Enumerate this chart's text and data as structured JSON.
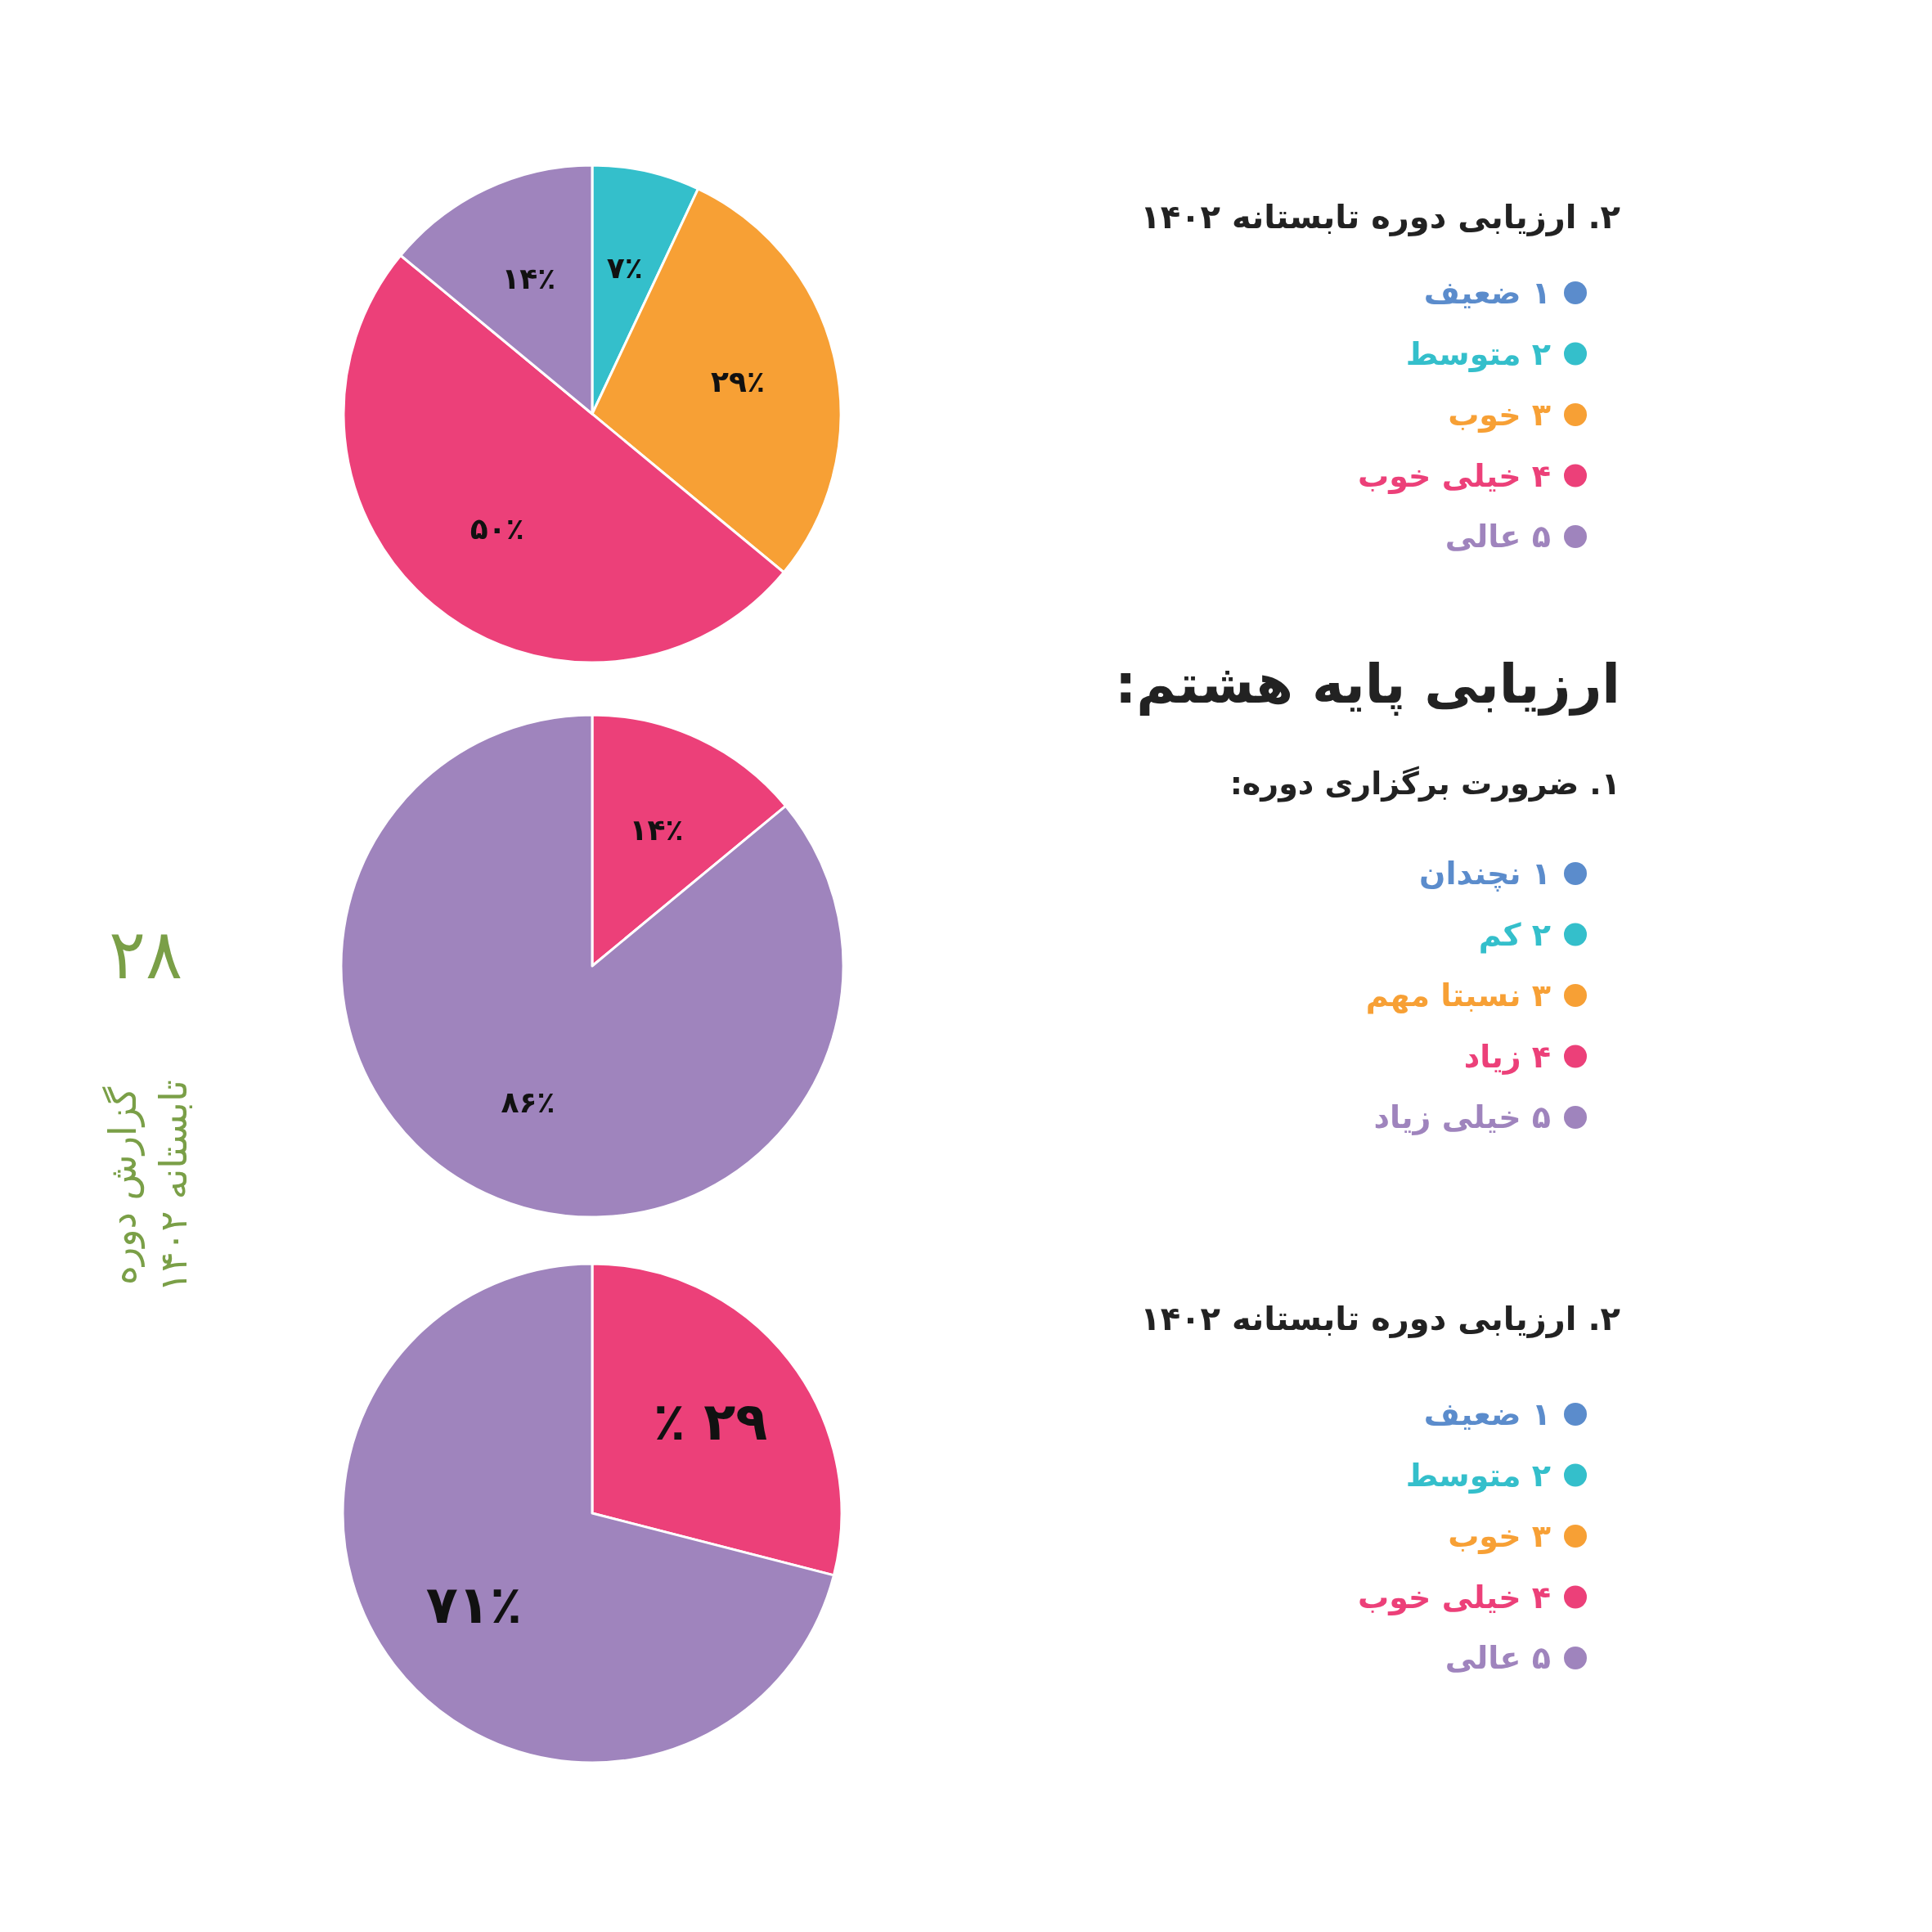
{
  "chart_data": [
    {
      "type": "pie",
      "title": "۲. ارزیابی دوره تابستانه ۱۴۰۲",
      "categories": [
        "۱ ضعیف",
        "۲ متوسط",
        "۳ خوب",
        "۴ خیلی خوب",
        "۵ عالی"
      ],
      "values": [
        0,
        7,
        29,
        50,
        14
      ],
      "colors": [
        "#5b8ccc",
        "#34bfcb",
        "#f7a035",
        "#ec4079",
        "#9f84bd"
      ],
      "value_labels": [
        null,
        "۷٪",
        "۲۹٪",
        "۵۰٪",
        "۱۴٪"
      ],
      "legend": "right"
    },
    {
      "type": "pie",
      "title": "ارزیابی پایه هشتم:",
      "subtitle": "۱. ضرورت برگزاری دوره:",
      "categories": [
        "۱ نچندان",
        "۲ کم",
        "۳ نسبتا مهم",
        "۴ زیاد",
        "۵ خیلی زیاد"
      ],
      "values": [
        0,
        0,
        0,
        14,
        86
      ],
      "colors": [
        "#5b8ccc",
        "#34bfcb",
        "#f7a035",
        "#ec4079",
        "#9f84bd"
      ],
      "value_labels": [
        null,
        null,
        null,
        "۱۴٪",
        "۸۶٪"
      ],
      "legend": "right",
      "annotations": [
        "۲۸",
        "گزارش دوره",
        "تابستانه ۱۴۰۲"
      ]
    },
    {
      "type": "pie",
      "title": "۲. ارزیابی دوره تابستانه ۱۴۰۲",
      "categories": [
        "۱ ضعیف",
        "۲ متوسط",
        "۳ خوب",
        "۴ خیلی خوب",
        "۵ عالی"
      ],
      "values": [
        0,
        0,
        0,
        29,
        71
      ],
      "colors": [
        "#5b8ccc",
        "#34bfcb",
        "#f7a035",
        "#ec4079",
        "#9f84bd"
      ],
      "value_labels": [
        null,
        null,
        null,
        "۲۹ ٪",
        "۷۱٪"
      ],
      "legend": "right"
    }
  ]
}
